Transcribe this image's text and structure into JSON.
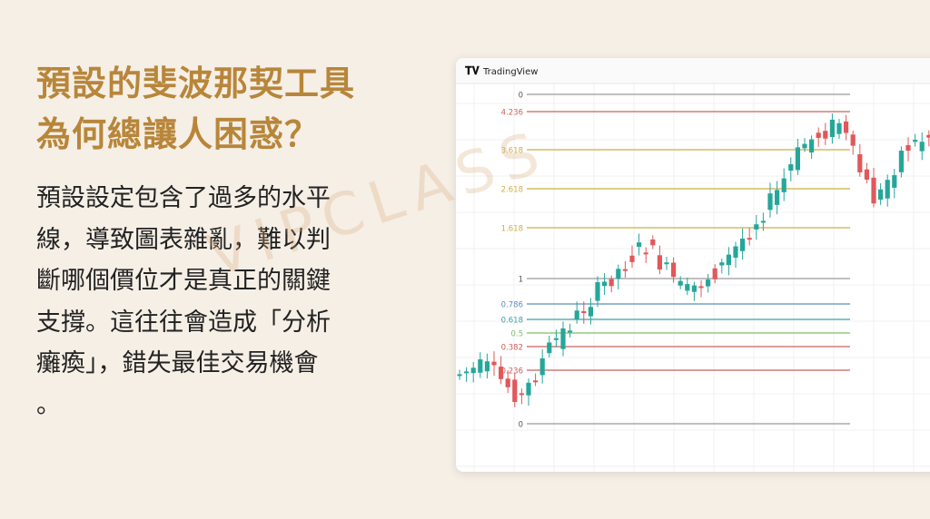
{
  "slide": {
    "title": [
      "預設的斐波那契工具",
      "為何總讓人困惑？"
    ],
    "body": [
      "預設設定包含了過多的水平",
      "線，導致圖表雜亂，難以判",
      "斷哪個價位才是真正的關鍵",
      "支撐。這往往會造成「分析",
      "癱瘓」，錯失最佳交易機會",
      "。"
    ],
    "watermark": "VIPCLASS"
  },
  "screenshot": {
    "app": "TradingView",
    "levels": [
      {
        "label": "0",
        "color": "#9a9a9a"
      },
      {
        "label": "4.236",
        "color": "#c9605a"
      },
      {
        "label": "3.618",
        "color": "#cfae45"
      },
      {
        "label": "2.618",
        "color": "#cfae45"
      },
      {
        "label": "1.618",
        "color": "#cfae45"
      },
      {
        "label": "1",
        "color": "#9a9a9a"
      },
      {
        "label": "0.786",
        "color": "#5b8dbb"
      },
      {
        "label": "0.618",
        "color": "#3aa5a0"
      },
      {
        "label": "0.5",
        "color": "#7cbf6a"
      },
      {
        "label": "0.382",
        "color": "#c9605a"
      },
      {
        "label": "0.236",
        "color": "#c9605a"
      },
      {
        "label": "0",
        "color": "#9a9a9a"
      }
    ]
  }
}
